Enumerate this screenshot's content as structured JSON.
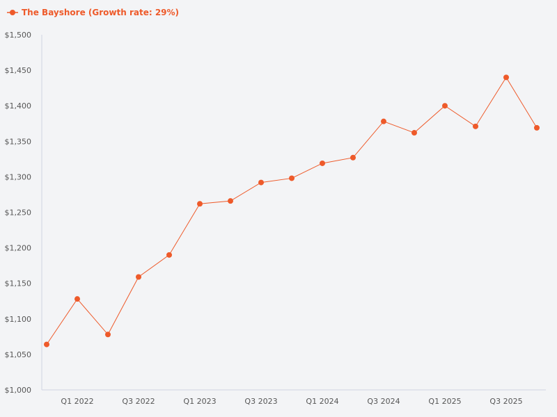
{
  "chart_data": {
    "type": "line",
    "title": "",
    "xlabel": "",
    "ylabel": "",
    "ylim": [
      1000,
      1500
    ],
    "y_ticks": [
      1000,
      1050,
      1100,
      1150,
      1200,
      1250,
      1300,
      1350,
      1400,
      1450,
      1500
    ],
    "y_tick_labels": [
      "$1,000",
      "$1,050",
      "$1,100",
      "$1,150",
      "$1,200",
      "$1,250",
      "$1,300",
      "$1,350",
      "$1,400",
      "$1,450",
      "$1,500"
    ],
    "categories": [
      "Q4 2021",
      "Q1 2022",
      "Q2 2022",
      "Q3 2022",
      "Q4 2022",
      "Q1 2023",
      "Q2 2023",
      "Q3 2023",
      "Q4 2023",
      "Q1 2024",
      "Q2 2024",
      "Q3 2024",
      "Q4 2024",
      "Q1 2025",
      "Q2 2025",
      "Q3 2025",
      "Q4 2025"
    ],
    "x_tick_labels": [
      {
        "index": 1,
        "label": "Q1 2022"
      },
      {
        "index": 3,
        "label": "Q3 2022"
      },
      {
        "index": 5,
        "label": "Q1 2023"
      },
      {
        "index": 7,
        "label": "Q3 2023"
      },
      {
        "index": 9,
        "label": "Q1 2024"
      },
      {
        "index": 11,
        "label": "Q3 2024"
      },
      {
        "index": 13,
        "label": "Q1 2025"
      },
      {
        "index": 15,
        "label": "Q3 2025"
      }
    ],
    "series": [
      {
        "name": "The Bayshore (Growth rate: 29%)",
        "color": "#ee5a2a",
        "values": [
          1064,
          1128,
          1078,
          1159,
          1190,
          1262,
          1266,
          1292,
          1298,
          1319,
          1327,
          1378,
          1362,
          1400,
          1371,
          1440,
          1369
        ]
      }
    ],
    "legend_position": "top-left",
    "grid": false
  },
  "colors": {
    "background": "#f3f4f6",
    "axis": "#cfd3e3",
    "tick_text": "#555555"
  }
}
